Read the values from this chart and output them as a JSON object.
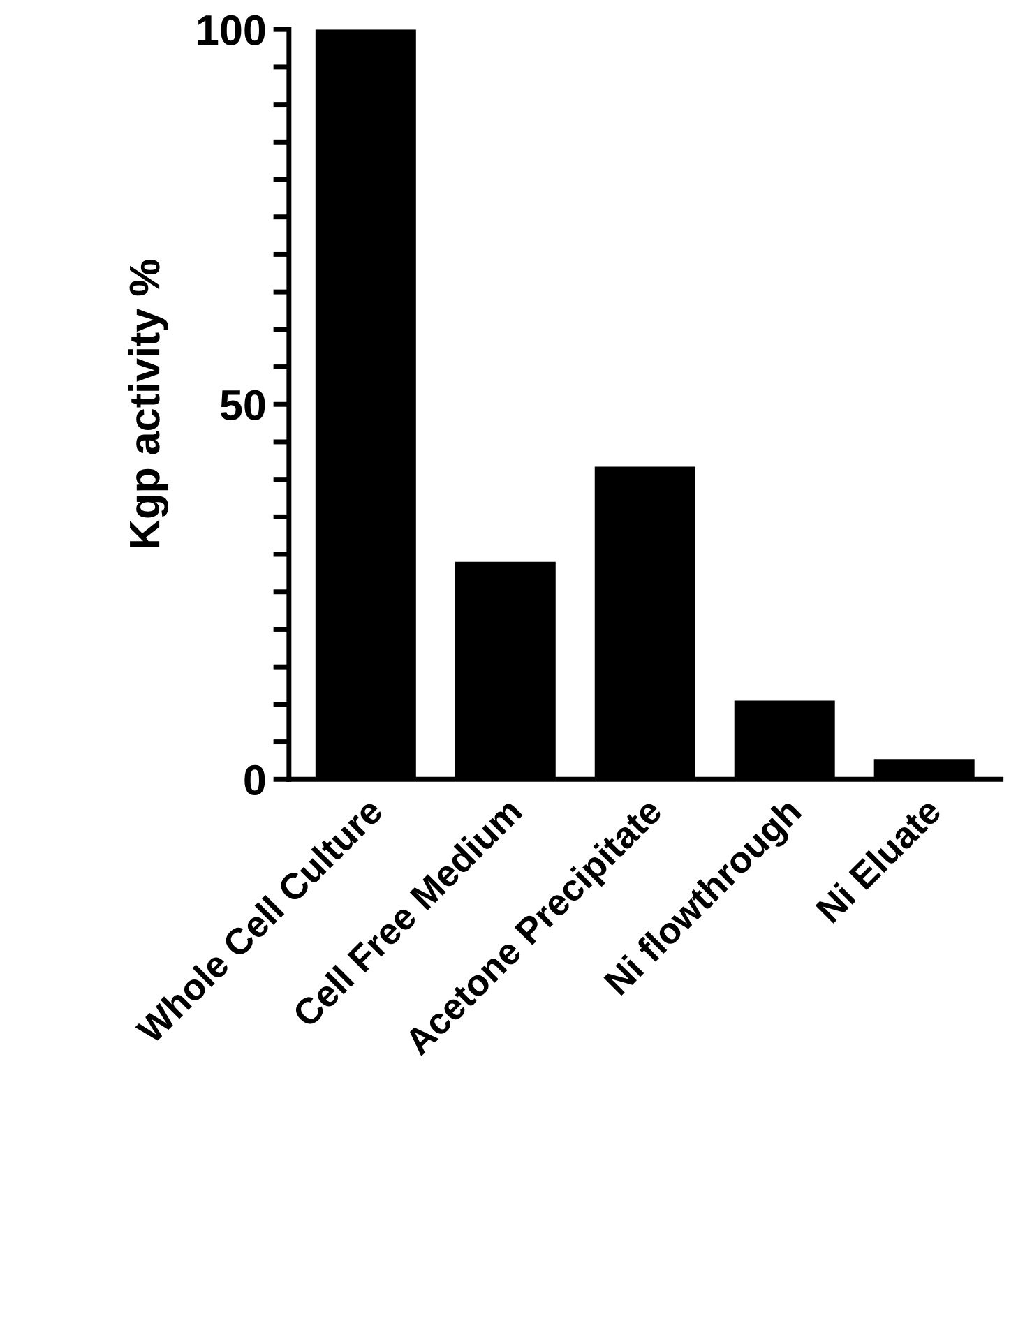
{
  "chart_data": {
    "type": "bar",
    "ylabel": "Kgp activity %",
    "categories": [
      "Whole Cell Culture",
      "Cell Free Medium",
      "Acetone Precipitate",
      "Ni flowthrough",
      "Ni Eluate"
    ],
    "values": [
      100,
      29,
      41.7,
      10.5,
      2.7
    ],
    "color": "#000000",
    "ylim": [
      0,
      100
    ],
    "yticks": [
      0,
      {
        "value": 5,
        "label": null
      },
      {
        "value": 10,
        "label": null
      },
      {
        "value": 15,
        "label": null
      },
      {
        "value": 20,
        "label": null
      },
      {
        "value": 25,
        "label": null
      },
      {
        "value": 30,
        "label": null
      },
      {
        "value": 35,
        "label": null
      },
      {
        "value": 40,
        "label": null
      },
      {
        "value": 45,
        "label": null
      },
      50,
      {
        "value": 55,
        "label": null
      },
      {
        "value": 60,
        "label": null
      },
      {
        "value": 65,
        "label": null
      },
      {
        "value": 70,
        "label": null
      },
      {
        "value": 75,
        "label": null
      },
      {
        "value": 80,
        "label": null
      },
      {
        "value": 85,
        "label": null
      },
      {
        "value": 90,
        "label": null
      },
      {
        "value": 95,
        "label": null
      },
      100
    ],
    "grid": false
  }
}
